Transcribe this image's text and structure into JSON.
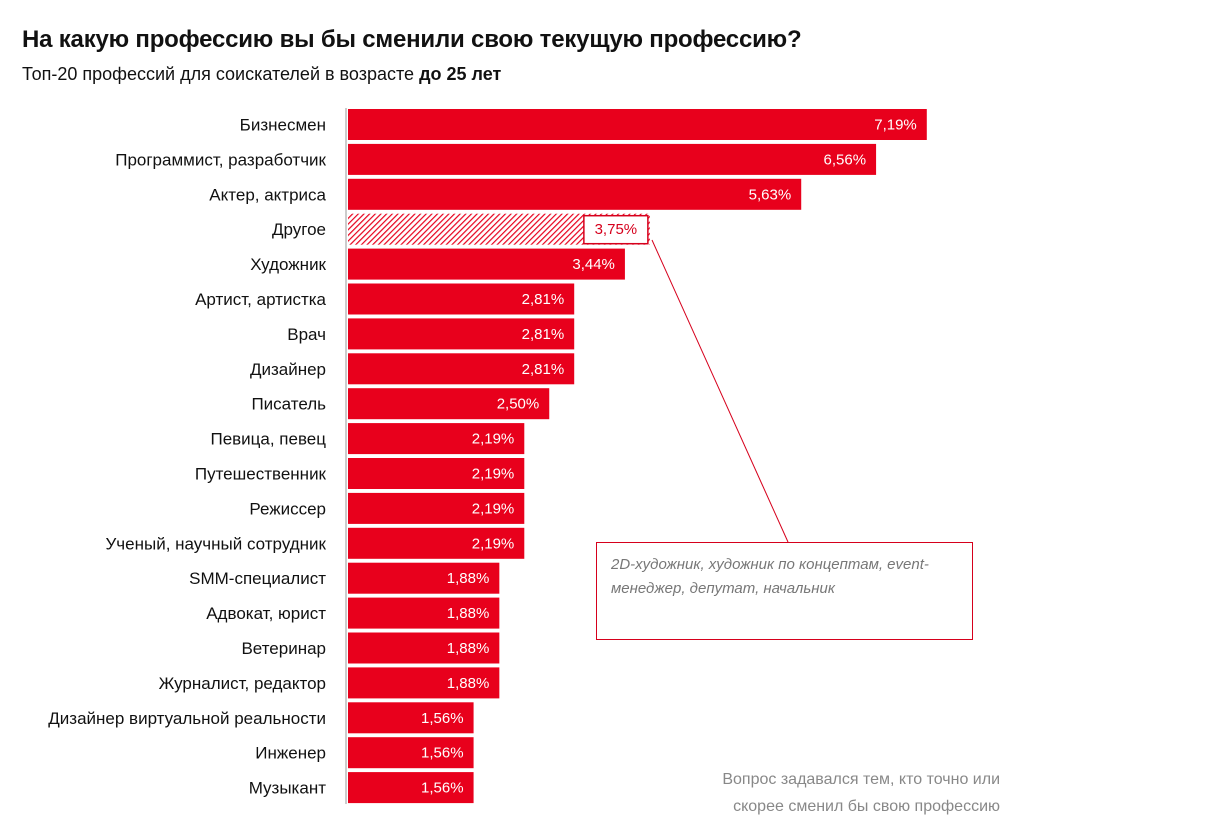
{
  "header": {
    "title": "На какую профессию вы бы сменили свою текущую профессию?",
    "subtitle_prefix": "Топ-20 профессий для соискателей в возрасте ",
    "subtitle_bold": "до 25 лет"
  },
  "colors": {
    "bar": "#e8001c",
    "accent": "#d6001c",
    "axis": "#999999"
  },
  "chart_data": {
    "type": "bar",
    "orientation": "horizontal",
    "categories": [
      "Бизнесмен",
      "Программист, разработчик",
      "Актер, актриса",
      "Другое",
      "Художник",
      "Артист, артистка",
      "Врач",
      "Дизайнер",
      "Писатель",
      "Певица, певец",
      "Путешественник",
      "Режиссер",
      "Ученый, научный сотрудник",
      "SMM-специалист",
      "Адвокат, юрист",
      "Ветеринар",
      "Журналист, редактор",
      "Дизайнер виртуальной реальности",
      "Инженер",
      "Музыкант"
    ],
    "values": [
      7.19,
      6.56,
      5.63,
      3.75,
      3.44,
      2.81,
      2.81,
      2.81,
      2.5,
      2.19,
      2.19,
      2.19,
      2.19,
      1.88,
      1.88,
      1.88,
      1.88,
      1.56,
      1.56,
      1.56
    ],
    "value_labels": [
      "7,19%",
      "6,56%",
      "5,63%",
      "3,75%",
      "3,44%",
      "2,81%",
      "2,81%",
      "2,81%",
      "2,50%",
      "2,19%",
      "2,19%",
      "2,19%",
      "2,19%",
      "1,88%",
      "1,88%",
      "1,88%",
      "1,88%",
      "1,56%",
      "1,56%",
      "1,56%"
    ],
    "hatched_category": "Другое",
    "unit": "%"
  },
  "annotation": {
    "text": "2D-художник, художник по концептам, event-менеджер, депутат, начальник"
  },
  "footnote": {
    "line1": "Вопрос задавался тем, кто точно или",
    "line2": "скорее сменил бы свою профессию"
  }
}
